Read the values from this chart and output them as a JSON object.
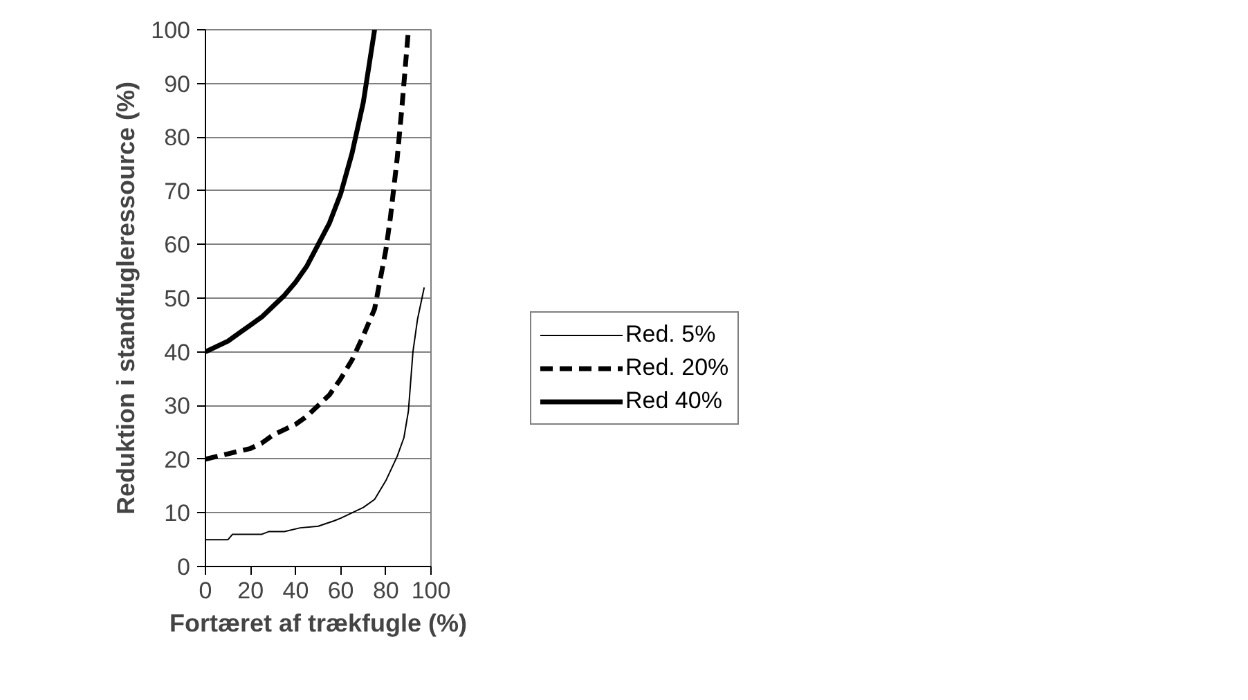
{
  "chart_data": {
    "type": "line",
    "xlabel": "Fortæret af trækfugle (%)",
    "ylabel": "Reduktion i standfugleressource (%)",
    "xlim": [
      0,
      100
    ],
    "xticks": [
      0,
      20,
      40,
      60,
      80,
      100
    ],
    "ylim": [
      0,
      100
    ],
    "yticks": [
      0,
      10,
      20,
      30,
      40,
      50,
      60,
      70,
      80,
      90,
      100
    ],
    "grid": "y",
    "legend": "right",
    "marker": "none",
    "series": [
      {
        "name": "Red. 5%",
        "color": "#000000",
        "line_style": "solid",
        "x": [
          0,
          10,
          12,
          25,
          28,
          35,
          42,
          50,
          57,
          60,
          65,
          70,
          75,
          80,
          85,
          88,
          90,
          92,
          94,
          97
        ],
        "values": [
          5,
          5,
          6,
          6,
          6.5,
          6.5,
          7.2,
          7.5,
          8.5,
          9,
          10,
          11,
          12.5,
          16,
          20.5,
          24,
          29,
          40,
          46,
          52
        ]
      },
      {
        "name": "Red. 20%",
        "color": "#000000",
        "line_style": "dashed",
        "x": [
          0,
          5,
          10,
          15,
          20,
          25,
          30,
          35,
          40,
          45,
          50,
          55,
          60,
          65,
          70,
          75,
          80,
          82,
          85,
          87,
          89,
          90
        ],
        "values": [
          20,
          20.5,
          21,
          21.5,
          22,
          23,
          24.5,
          25.5,
          26.5,
          28,
          30,
          32,
          35,
          38.5,
          43,
          48,
          59,
          65,
          76,
          85,
          95,
          100
        ]
      },
      {
        "name": "Red 40%",
        "color": "#000000",
        "line_style": "solid",
        "x": [
          0,
          5,
          10,
          15,
          20,
          25,
          30,
          35,
          40,
          45,
          50,
          55,
          60,
          65,
          70,
          75
        ],
        "values": [
          40,
          41,
          42,
          43.5,
          45,
          46.5,
          48.5,
          50.5,
          53,
          56,
          60,
          64,
          69.5,
          77,
          86.5,
          100
        ]
      }
    ]
  }
}
